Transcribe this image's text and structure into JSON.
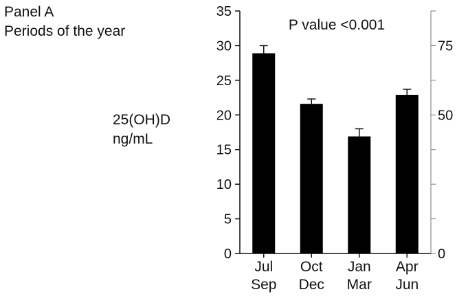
{
  "panel": {
    "title": "Panel A",
    "subtitle": "Periods of the year"
  },
  "chart_data": {
    "type": "bar",
    "annotation": "P value <0.001",
    "ylabel_lines": [
      "25(OH)D",
      "ng/mL"
    ],
    "categories": [
      {
        "lines": [
          "Jul",
          "Sep"
        ]
      },
      {
        "lines": [
          "Oct",
          "Dec"
        ]
      },
      {
        "lines": [
          "Jan",
          "Mar"
        ]
      },
      {
        "lines": [
          "Apr",
          "Jun"
        ]
      }
    ],
    "values": [
      28.9,
      21.6,
      16.9,
      22.9
    ],
    "errors": [
      1.1,
      0.7,
      1.1,
      0.8
    ],
    "ylim": [
      0,
      35
    ],
    "yticks": [
      0,
      5,
      10,
      15,
      20,
      25,
      30,
      35
    ],
    "y2": {
      "ylim": [
        0,
        87.5
      ],
      "ticks": [
        0,
        12.5,
        25,
        37.5,
        50,
        62.5,
        75,
        87.5
      ],
      "tick_labels": [
        "0",
        "",
        "",
        "",
        "50",
        "",
        "75",
        ""
      ]
    },
    "bar_color": "#000000",
    "grid": false,
    "legend": "none"
  }
}
